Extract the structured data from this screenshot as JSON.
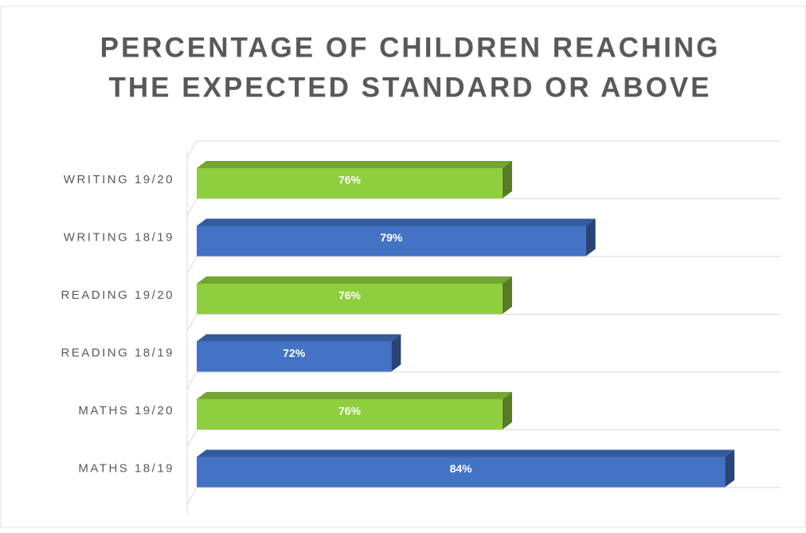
{
  "chart_data": {
    "type": "bar",
    "orientation": "horizontal",
    "title": [
      "PERCENTAGE OF CHILDREN REACHING",
      "THE EXPECTED STANDARD OR ABOVE"
    ],
    "categories": [
      "WRITING 19/20",
      "WRITING 18/19",
      "READING 19/20",
      "READING 18/19",
      "MATHS 19/20",
      "MATHS 18/19"
    ],
    "values": [
      76,
      79,
      76,
      72,
      76,
      84
    ],
    "value_labels": [
      "76%",
      "79%",
      "76%",
      "72%",
      "76%",
      "84%"
    ],
    "colors": [
      "#8fce3e",
      "#4472c4",
      "#8fce3e",
      "#4472c4",
      "#8fce3e",
      "#4472c4"
    ],
    "xlim": [
      65,
      86
    ],
    "grid": true
  }
}
